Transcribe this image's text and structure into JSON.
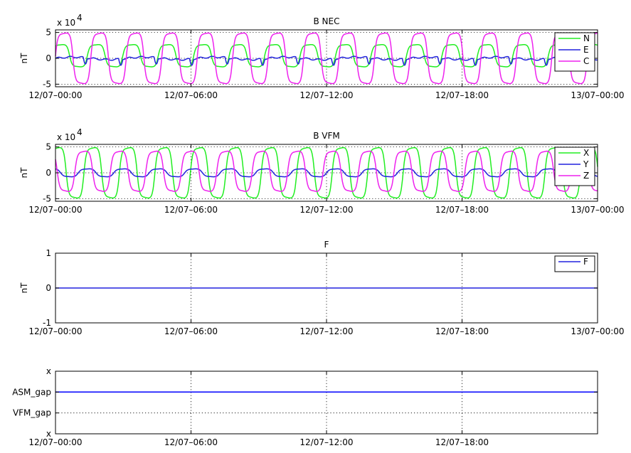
{
  "figure": {
    "background": "#ffffff"
  },
  "chart_data": [
    {
      "type": "line",
      "title": "B NEC",
      "ylabel": "nT",
      "y_multiplier": "x 10",
      "y_multiplier_exp": "4",
      "ylim": [
        -5.5,
        5.5
      ],
      "yticks": [
        -5,
        0,
        5
      ],
      "ytick_labels": [
        "-5",
        "0",
        "5"
      ],
      "xlim_hours": [
        0,
        24
      ],
      "xticks_hours": [
        0,
        6,
        12,
        18,
        24
      ],
      "xtick_labels": [
        "12/07–00:00",
        "12/07–06:00",
        "12/07–12:00",
        "12/07–18:00",
        "13/07–00:00"
      ],
      "grid": true,
      "legend_placement": "top-right",
      "series": [
        {
          "name": "N",
          "color": "#22ee22",
          "kind": "wave",
          "amplitude": 2.2,
          "offset": 0.5,
          "period_hours": 1.57,
          "phase": 0.6,
          "sharpness": 1.5
        },
        {
          "name": "E",
          "color": "#2222dd",
          "kind": "dips",
          "amplitude": 1.2,
          "offset": 0.0,
          "period_hours": 1.57,
          "phase": 0.0,
          "sharpness": 1.0
        },
        {
          "name": "C",
          "color": "#ee22ee",
          "kind": "wave",
          "amplitude": 5.0,
          "offset": 0.0,
          "period_hours": 1.57,
          "phase": 0.0,
          "sharpness": 1.6
        }
      ]
    },
    {
      "type": "line",
      "title": "B VFM",
      "ylabel": "nT",
      "y_multiplier": "x 10",
      "y_multiplier_exp": "4",
      "ylim": [
        -5.5,
        5.5
      ],
      "yticks": [
        -5,
        0,
        5
      ],
      "ytick_labels": [
        "-5",
        "0",
        "5"
      ],
      "xlim_hours": [
        0,
        24
      ],
      "xticks_hours": [
        0,
        6,
        12,
        18,
        24
      ],
      "xtick_labels": [
        "12/07–00:00",
        "12/07–06:00",
        "12/07–12:00",
        "12/07–18:00",
        "13/07–00:00"
      ],
      "grid": true,
      "legend_placement": "top-right",
      "series": [
        {
          "name": "X",
          "color": "#22ee22",
          "kind": "wave",
          "amplitude": 5.0,
          "offset": 0.0,
          "period_hours": 1.57,
          "phase": 1.2,
          "sharpness": 1.5
        },
        {
          "name": "Y",
          "color": "#2222dd",
          "kind": "wave",
          "amplitude": 0.8,
          "offset": 0.0,
          "period_hours": 1.57,
          "phase": 2.2,
          "sharpness": 1.0
        },
        {
          "name": "Z",
          "color": "#ee22ee",
          "kind": "wave",
          "amplitude": 4.0,
          "offset": 0.3,
          "period_hours": 1.57,
          "phase": 2.8,
          "sharpness": 1.4
        }
      ]
    },
    {
      "type": "line",
      "title": "F",
      "ylabel": "nT",
      "ylim": [
        -1,
        1
      ],
      "yticks": [
        -1,
        0,
        1
      ],
      "ytick_labels": [
        "-1",
        "0",
        "1"
      ],
      "xlim_hours": [
        0,
        24
      ],
      "xticks_hours": [
        0,
        6,
        12,
        18,
        24
      ],
      "xtick_labels": [
        "12/07–00:00",
        "12/07–06:00",
        "12/07–12:00",
        "12/07–18:00",
        "13/07–00:00"
      ],
      "grid": true,
      "legend_placement": "top-right",
      "series": [
        {
          "name": "F",
          "color": "#2222dd",
          "kind": "constant",
          "value": 0
        }
      ]
    },
    {
      "type": "line",
      "title": "",
      "ylabel": "",
      "ylim": [
        0,
        3
      ],
      "yticks": [
        0,
        1,
        2,
        3
      ],
      "ytick_labels": [
        "x",
        "VFM_gap",
        "ASM_gap",
        "x"
      ],
      "xlim_hours": [
        0,
        24
      ],
      "xticks_hours": [
        0,
        6,
        12,
        18
      ],
      "xtick_labels": [
        "12/07–00:00",
        "12/07–06:00",
        "12/07–12:00",
        "12/07–18:00"
      ],
      "grid": true,
      "series": [
        {
          "name": "ASM_gap",
          "color": "#0000ff",
          "kind": "constant",
          "value": 2
        }
      ]
    }
  ]
}
